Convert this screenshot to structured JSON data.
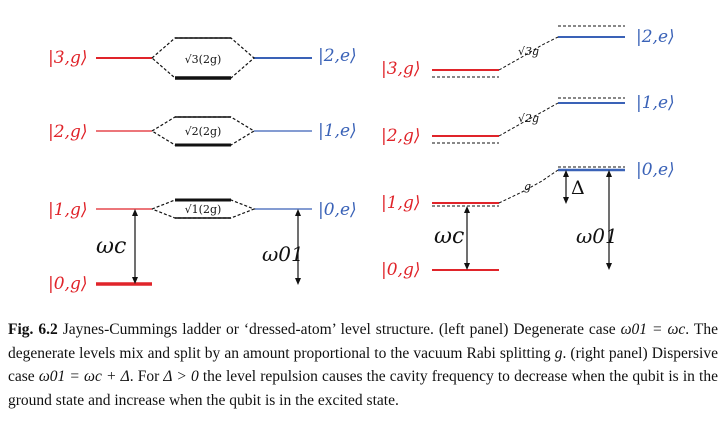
{
  "colors": {
    "red": "#e0242a",
    "blue": "#3a62b7",
    "black": "#111111"
  },
  "left_panel": {
    "ket_3g": "|3,g⟩",
    "ket_2g": "|2,g⟩",
    "ket_1g": "|1,g⟩",
    "ket_0g": "|0,g⟩",
    "ket_2e": "|2,e⟩",
    "ket_1e": "|1,e⟩",
    "ket_0e": "|0,e⟩",
    "split_3": "√3(2g)",
    "split_2": "√2(2g)",
    "split_1": "√1(2g)",
    "omega_c": "ωc",
    "omega_01": "ω01"
  },
  "right_panel": {
    "ket_3g": "|3,g⟩",
    "ket_2g": "|2,g⟩",
    "ket_1g": "|1,g⟩",
    "ket_0g": "|0,g⟩",
    "ket_2e": "|2,e⟩",
    "ket_1e": "|1,e⟩",
    "ket_0e": "|0,e⟩",
    "coupling_3": "√3g",
    "coupling_2": "√2g",
    "coupling_1": "g",
    "delta": "Δ",
    "omega_c": "ωc",
    "omega_01": "ω01"
  },
  "caption": {
    "label": "Fig. 6.2",
    "text_1": " Jaynes-Cummings ladder or ‘dressed-atom’ level structure. (left panel) Degenerate case ",
    "eq_1": "ω01 = ωc",
    "text_2": ". The degenerate levels mix and split by an amount proportional to the vacuum Rabi splitting ",
    "g_1": "g",
    "text_3": ". (right panel) Dispersive case ",
    "eq_2": "ω01 = ωc + Δ",
    "text_4": ". For ",
    "eq_3": "Δ > 0",
    "text_5": " the level repulsion causes the cavity frequency to decrease when the qubit is in the ground state and increase when the qubit is in the excited state."
  }
}
